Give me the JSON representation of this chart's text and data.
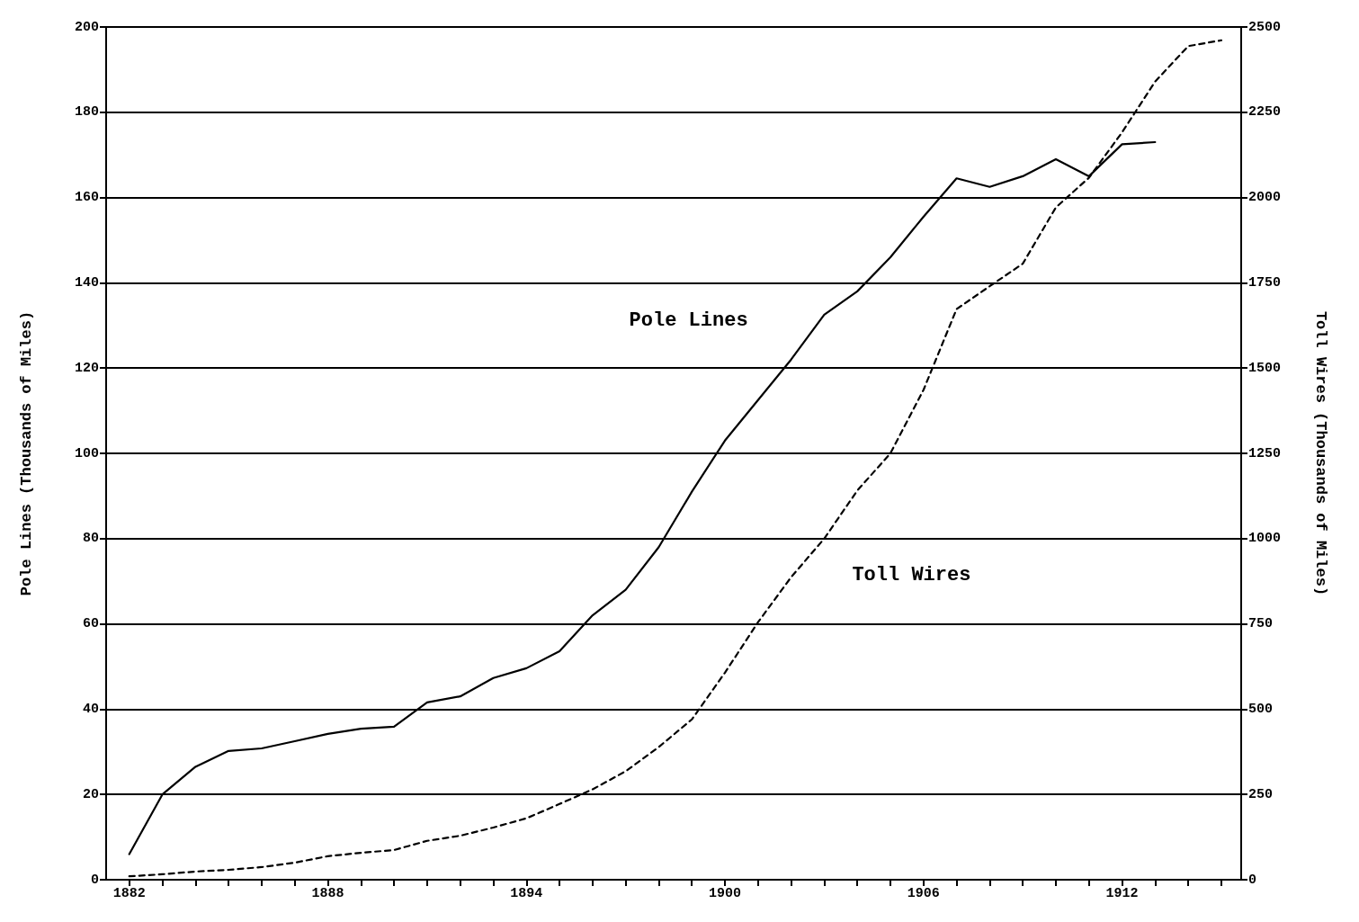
{
  "chart_data": {
    "type": "line",
    "xlabel": null,
    "ylabel": "Pole Lines (Thousands of Miles)",
    "y2label": "Toll Wires (Thousands of Miles)",
    "x": [
      1882,
      1883,
      1884,
      1885,
      1886,
      1887,
      1888,
      1889,
      1890,
      1891,
      1892,
      1893,
      1894,
      1895,
      1896,
      1897,
      1898,
      1899,
      1900,
      1901,
      1902,
      1903,
      1904,
      1905,
      1906,
      1907,
      1908,
      1909,
      1910,
      1911,
      1912,
      1913,
      1914,
      1915
    ],
    "series": [
      {
        "name": "Pole Lines",
        "color": "#000000",
        "line_style": "solid",
        "values": [
          6,
          20,
          26.5,
          30.2,
          30.8,
          32.5,
          34.2,
          35.4,
          35.9,
          41.6,
          43,
          47.3,
          49.6,
          53.6,
          62,
          68,
          78,
          91,
          103,
          112.5,
          122,
          132.5,
          138,
          146,
          155.5,
          164.5,
          162.5,
          165,
          169,
          165,
          172.5,
          173,
          null,
          null
        ]
      },
      {
        "name": "Toll Wires",
        "color": "#000000",
        "line_style": "dashed",
        "axis": "y2",
        "values": [
          10,
          16,
          24,
          29,
          37,
          50,
          69,
          79,
          87,
          114,
          129,
          153,
          180,
          222,
          265,
          318,
          389,
          470,
          607,
          755,
          887,
          1000,
          1141,
          1250,
          1436,
          1673,
          1740,
          1806,
          1971,
          2058,
          2191,
          2340,
          2444,
          2461
        ]
      }
    ],
    "xlim": [
      1881.3,
      1915.6
    ],
    "xticks": [
      1882,
      {
        "value": 1883,
        "label": null
      },
      {
        "value": 1884,
        "label": null
      },
      {
        "value": 1885,
        "label": null
      },
      {
        "value": 1886,
        "label": null
      },
      {
        "value": 1887,
        "label": null
      },
      1888,
      {
        "value": 1889,
        "label": null
      },
      {
        "value": 1890,
        "label": null
      },
      {
        "value": 1891,
        "label": null
      },
      {
        "value": 1892,
        "label": null
      },
      {
        "value": 1893,
        "label": null
      },
      1894,
      {
        "value": 1895,
        "label": null
      },
      {
        "value": 1896,
        "label": null
      },
      {
        "value": 1897,
        "label": null
      },
      {
        "value": 1898,
        "label": null
      },
      {
        "value": 1899,
        "label": null
      },
      1900,
      {
        "value": 1901,
        "label": null
      },
      {
        "value": 1902,
        "label": null
      },
      {
        "value": 1903,
        "label": null
      },
      {
        "value": 1904,
        "label": null
      },
      {
        "value": 1905,
        "label": null
      },
      1906,
      {
        "value": 1907,
        "label": null
      },
      {
        "value": 1908,
        "label": null
      },
      {
        "value": 1909,
        "label": null
      },
      {
        "value": 1910,
        "label": null
      },
      {
        "value": 1911,
        "label": null
      },
      1912,
      {
        "value": 1913,
        "label": null
      },
      {
        "value": 1914,
        "label": null
      },
      {
        "value": 1915,
        "label": null
      }
    ],
    "ylim": [
      0,
      200
    ],
    "yticks": [
      0,
      20,
      40,
      60,
      80,
      100,
      120,
      140,
      160,
      180,
      200
    ],
    "y2lim": [
      0,
      2500
    ],
    "y2ticks": [
      0,
      250,
      500,
      750,
      1000,
      1250,
      1500,
      1750,
      2000,
      2250,
      2500
    ],
    "grid": "y",
    "legend": false,
    "marker": "none"
  }
}
